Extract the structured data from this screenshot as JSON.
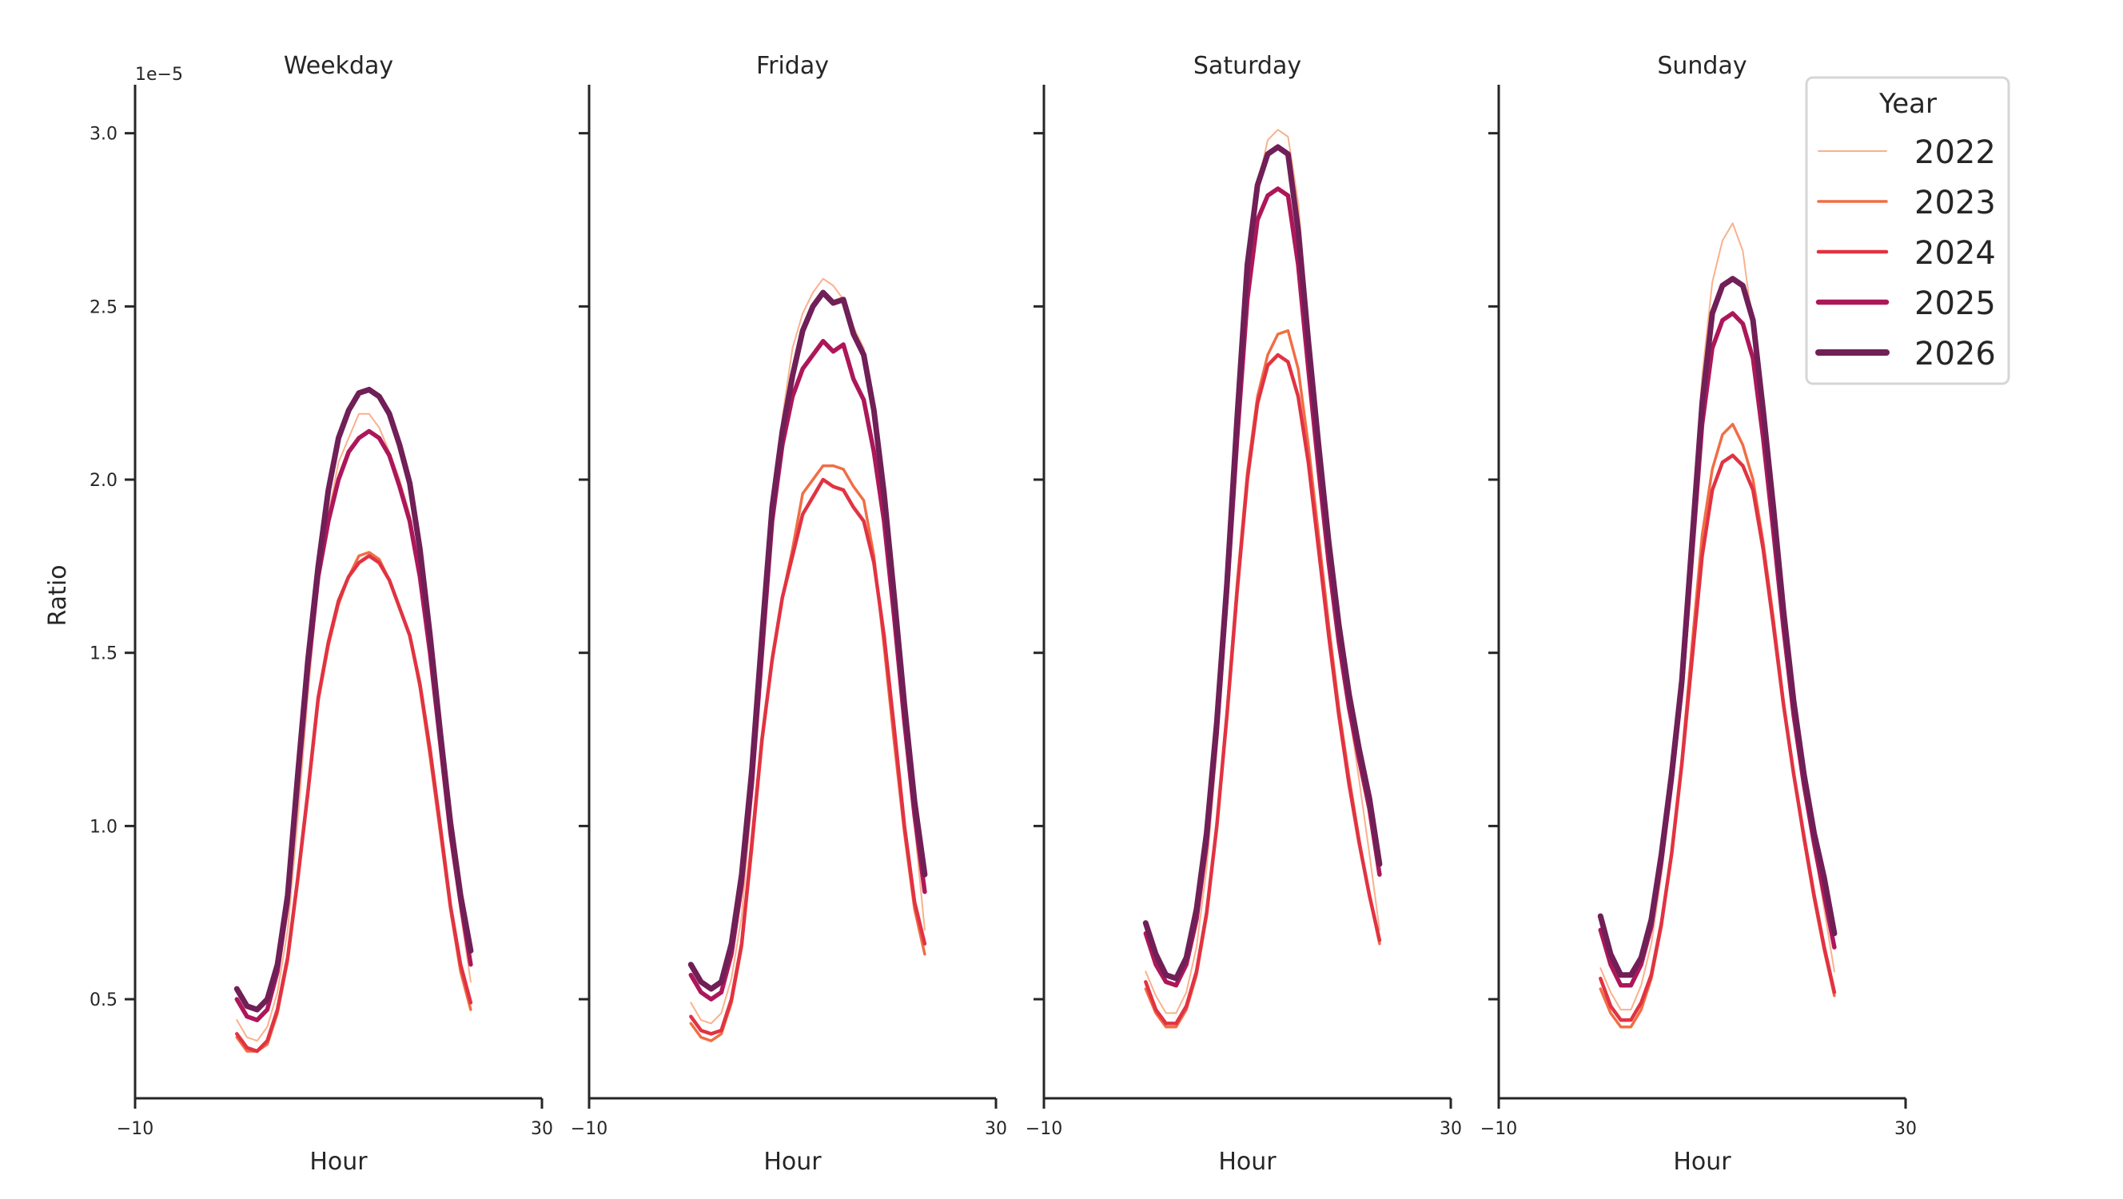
{
  "chart_data": [
    {
      "type": "line",
      "title": "Weekday",
      "xlabel": "Hour",
      "ylabel": "Ratio",
      "y_scale_label": "1e−5",
      "xlim": [
        -10,
        30
      ],
      "ylim": [
        0.214,
        3.14
      ],
      "x_ticks": [
        "−10",
        "30"
      ],
      "y_ticks": [
        "0.5",
        "1.0",
        "1.5",
        "2.0",
        "2.5",
        "3.0"
      ],
      "x": [
        0,
        1,
        2,
        3,
        4,
        5,
        6,
        7,
        8,
        9,
        10,
        11,
        12,
        13,
        14,
        15,
        16,
        17,
        18,
        19,
        20,
        21,
        22,
        23
      ],
      "series": [
        {
          "name": "2022",
          "values": [
            0.44,
            0.39,
            0.38,
            0.42,
            0.52,
            0.7,
            1.02,
            1.38,
            1.7,
            1.9,
            2.05,
            2.12,
            2.19,
            2.19,
            2.15,
            2.08,
            2.0,
            1.9,
            1.74,
            1.52,
            1.25,
            0.98,
            0.75,
            0.55
          ]
        },
        {
          "name": "2023",
          "values": [
            0.39,
            0.35,
            0.35,
            0.37,
            0.46,
            0.61,
            0.84,
            1.09,
            1.36,
            1.52,
            1.64,
            1.72,
            1.78,
            1.79,
            1.77,
            1.71,
            1.63,
            1.55,
            1.4,
            1.2,
            0.98,
            0.76,
            0.58,
            0.47
          ]
        },
        {
          "name": "2024",
          "values": [
            0.4,
            0.36,
            0.35,
            0.38,
            0.47,
            0.62,
            0.85,
            1.1,
            1.37,
            1.53,
            1.65,
            1.72,
            1.76,
            1.78,
            1.76,
            1.71,
            1.63,
            1.55,
            1.41,
            1.22,
            1.0,
            0.77,
            0.6,
            0.49
          ]
        },
        {
          "name": "2025",
          "values": [
            0.5,
            0.45,
            0.44,
            0.47,
            0.58,
            0.78,
            1.12,
            1.45,
            1.72,
            1.88,
            2.0,
            2.08,
            2.12,
            2.14,
            2.12,
            2.07,
            1.98,
            1.88,
            1.72,
            1.5,
            1.24,
            0.98,
            0.78,
            0.6
          ]
        },
        {
          "name": "2026",
          "values": [
            0.53,
            0.48,
            0.47,
            0.5,
            0.6,
            0.8,
            1.15,
            1.48,
            1.75,
            1.97,
            2.12,
            2.2,
            2.25,
            2.26,
            2.24,
            2.19,
            2.1,
            1.99,
            1.8,
            1.55,
            1.27,
            1.01,
            0.8,
            0.64
          ]
        }
      ]
    },
    {
      "type": "line",
      "title": "Friday",
      "xlabel": "Hour",
      "ylabel": "",
      "xlim": [
        -10,
        30
      ],
      "ylim": [
        0.214,
        3.14
      ],
      "x_ticks": [
        "−10",
        "30"
      ],
      "x": [
        0,
        1,
        2,
        3,
        4,
        5,
        6,
        7,
        8,
        9,
        10,
        11,
        12,
        13,
        14,
        15,
        16,
        17,
        18,
        19,
        20,
        21,
        22,
        23
      ],
      "series": [
        {
          "name": "2022",
          "values": [
            0.49,
            0.44,
            0.43,
            0.46,
            0.56,
            0.74,
            1.08,
            1.5,
            1.92,
            2.18,
            2.38,
            2.48,
            2.54,
            2.58,
            2.56,
            2.52,
            2.44,
            2.38,
            2.2,
            1.92,
            1.6,
            1.28,
            1.0,
            0.7
          ]
        },
        {
          "name": "2023",
          "values": [
            0.43,
            0.39,
            0.38,
            0.4,
            0.49,
            0.65,
            0.93,
            1.24,
            1.48,
            1.66,
            1.8,
            1.96,
            2.0,
            2.04,
            2.04,
            2.03,
            1.98,
            1.94,
            1.78,
            1.52,
            1.24,
            0.98,
            0.76,
            0.63
          ]
        },
        {
          "name": "2024",
          "values": [
            0.45,
            0.41,
            0.4,
            0.41,
            0.5,
            0.66,
            0.95,
            1.25,
            1.48,
            1.66,
            1.78,
            1.9,
            1.95,
            2.0,
            1.98,
            1.97,
            1.92,
            1.88,
            1.76,
            1.55,
            1.28,
            1.0,
            0.78,
            0.66
          ]
        },
        {
          "name": "2025",
          "values": [
            0.57,
            0.52,
            0.5,
            0.52,
            0.63,
            0.83,
            1.12,
            1.5,
            1.88,
            2.1,
            2.24,
            2.32,
            2.36,
            2.4,
            2.37,
            2.39,
            2.29,
            2.23,
            2.08,
            1.88,
            1.6,
            1.3,
            1.03,
            0.81
          ]
        },
        {
          "name": "2026",
          "values": [
            0.6,
            0.55,
            0.53,
            0.55,
            0.66,
            0.86,
            1.16,
            1.55,
            1.92,
            2.14,
            2.3,
            2.43,
            2.5,
            2.54,
            2.51,
            2.52,
            2.42,
            2.36,
            2.2,
            1.96,
            1.66,
            1.35,
            1.07,
            0.86
          ]
        }
      ]
    },
    {
      "type": "line",
      "title": "Saturday",
      "xlabel": "Hour",
      "ylabel": "",
      "xlim": [
        -10,
        30
      ],
      "ylim": [
        0.214,
        3.14
      ],
      "x_ticks": [
        "−10",
        "30"
      ],
      "x": [
        0,
        1,
        2,
        3,
        4,
        5,
        6,
        7,
        8,
        9,
        10,
        11,
        12,
        13,
        14,
        15,
        16,
        17,
        18,
        19,
        20,
        21,
        22,
        23
      ],
      "series": [
        {
          "name": "2022",
          "values": [
            0.58,
            0.51,
            0.46,
            0.46,
            0.52,
            0.65,
            0.88,
            1.22,
            1.65,
            2.12,
            2.55,
            2.85,
            2.98,
            3.01,
            2.99,
            2.8,
            2.45,
            2.1,
            1.8,
            1.55,
            1.33,
            1.13,
            0.92,
            0.7
          ]
        },
        {
          "name": "2023",
          "values": [
            0.53,
            0.46,
            0.42,
            0.42,
            0.47,
            0.57,
            0.74,
            1.0,
            1.33,
            1.7,
            2.02,
            2.24,
            2.36,
            2.42,
            2.43,
            2.32,
            2.1,
            1.84,
            1.58,
            1.34,
            1.14,
            0.96,
            0.8,
            0.66
          ]
        },
        {
          "name": "2024",
          "values": [
            0.55,
            0.47,
            0.43,
            0.43,
            0.48,
            0.58,
            0.75,
            1.0,
            1.32,
            1.68,
            2.0,
            2.22,
            2.33,
            2.36,
            2.34,
            2.24,
            2.05,
            1.8,
            1.55,
            1.32,
            1.12,
            0.95,
            0.8,
            0.67
          ]
        },
        {
          "name": "2025",
          "values": [
            0.69,
            0.6,
            0.55,
            0.54,
            0.6,
            0.73,
            0.95,
            1.27,
            1.67,
            2.12,
            2.52,
            2.75,
            2.82,
            2.84,
            2.82,
            2.62,
            2.32,
            2.03,
            1.76,
            1.53,
            1.34,
            1.19,
            1.05,
            0.86
          ]
        },
        {
          "name": "2026",
          "values": [
            0.72,
            0.63,
            0.57,
            0.56,
            0.62,
            0.76,
            0.98,
            1.3,
            1.7,
            2.18,
            2.62,
            2.85,
            2.94,
            2.96,
            2.94,
            2.72,
            2.4,
            2.1,
            1.82,
            1.58,
            1.38,
            1.22,
            1.08,
            0.89
          ]
        }
      ]
    },
    {
      "type": "line",
      "title": "Sunday",
      "xlabel": "Hour",
      "ylabel": "",
      "xlim": [
        -10,
        30
      ],
      "ylim": [
        0.214,
        3.14
      ],
      "x_ticks": [
        "−10",
        "30"
      ],
      "x": [
        0,
        1,
        2,
        3,
        4,
        5,
        6,
        7,
        8,
        9,
        10,
        11,
        12,
        13,
        14,
        15,
        16,
        17,
        18,
        19,
        20,
        21,
        22,
        23
      ],
      "series": [
        {
          "name": "2022",
          "values": [
            0.59,
            0.52,
            0.47,
            0.47,
            0.54,
            0.66,
            0.86,
            1.12,
            1.45,
            1.88,
            2.3,
            2.57,
            2.69,
            2.74,
            2.66,
            2.44,
            2.14,
            1.85,
            1.57,
            1.32,
            1.12,
            0.94,
            0.76,
            0.58
          ]
        },
        {
          "name": "2023",
          "values": [
            0.53,
            0.46,
            0.42,
            0.42,
            0.47,
            0.56,
            0.71,
            0.92,
            1.19,
            1.52,
            1.84,
            2.03,
            2.13,
            2.16,
            2.1,
            2.0,
            1.82,
            1.6,
            1.36,
            1.15,
            0.96,
            0.79,
            0.64,
            0.51
          ]
        },
        {
          "name": "2024",
          "values": [
            0.56,
            0.48,
            0.44,
            0.44,
            0.49,
            0.57,
            0.72,
            0.92,
            1.18,
            1.48,
            1.78,
            1.97,
            2.05,
            2.07,
            2.04,
            1.97,
            1.8,
            1.58,
            1.35,
            1.15,
            0.97,
            0.8,
            0.65,
            0.52
          ]
        },
        {
          "name": "2025",
          "values": [
            0.7,
            0.6,
            0.54,
            0.54,
            0.6,
            0.71,
            0.9,
            1.13,
            1.4,
            1.78,
            2.16,
            2.38,
            2.46,
            2.48,
            2.45,
            2.35,
            2.12,
            1.85,
            1.57,
            1.32,
            1.12,
            0.95,
            0.8,
            0.65
          ]
        },
        {
          "name": "2026",
          "values": [
            0.74,
            0.63,
            0.57,
            0.57,
            0.62,
            0.73,
            0.92,
            1.15,
            1.42,
            1.82,
            2.22,
            2.48,
            2.56,
            2.58,
            2.56,
            2.46,
            2.2,
            1.92,
            1.62,
            1.36,
            1.15,
            0.98,
            0.85,
            0.69
          ]
        }
      ]
    }
  ],
  "legend": {
    "title": "Year",
    "placement": "top-right",
    "entries": [
      {
        "label": "2022",
        "color": "#f9b18c"
      },
      {
        "label": "2023",
        "color": "#f06e45"
      },
      {
        "label": "2024",
        "color": "#e13342"
      },
      {
        "label": "2025",
        "color": "#ad1759"
      },
      {
        "label": "2026",
        "color": "#701f57"
      }
    ]
  }
}
